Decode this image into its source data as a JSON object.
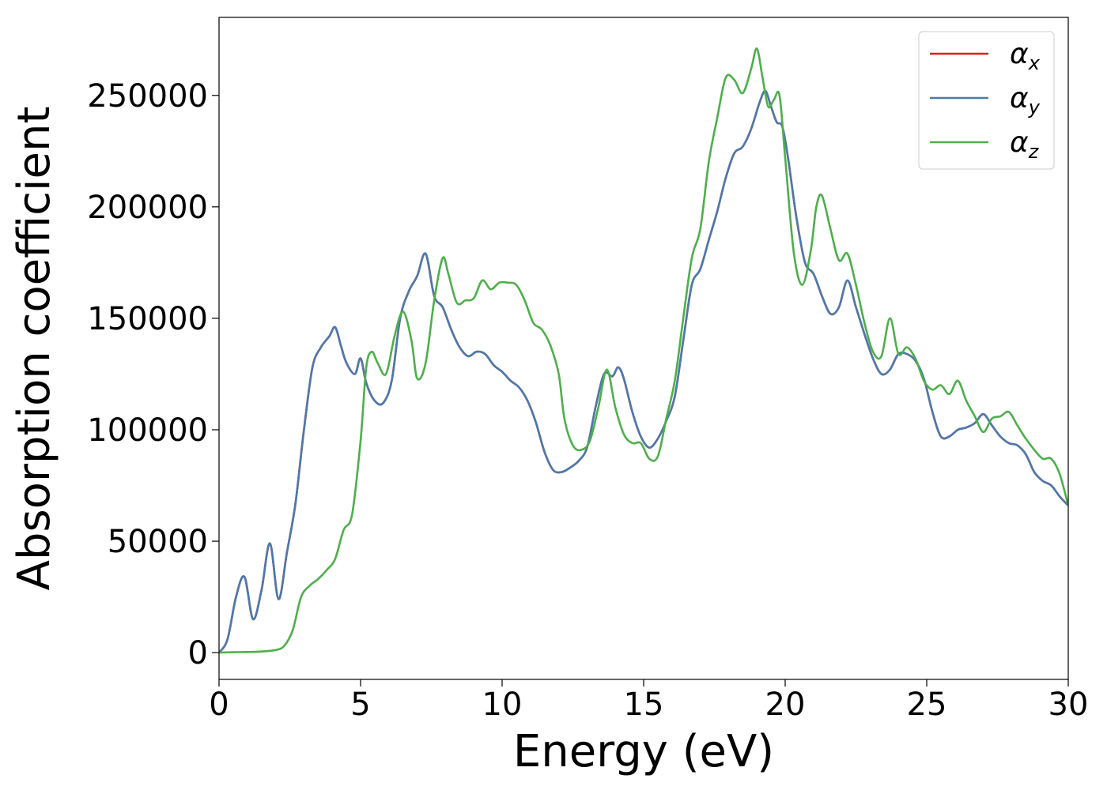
{
  "chart_data": {
    "type": "line",
    "xlabel": "Energy (eV)",
    "ylabel": "Absorption coefficient",
    "xlim": [
      0,
      30
    ],
    "ylim": [
      -12000,
      285000
    ],
    "xticks": [
      0,
      5,
      10,
      15,
      20,
      25,
      30
    ],
    "xtick_labels": [
      "0",
      "5",
      "10",
      "15",
      "20",
      "25",
      "30"
    ],
    "yticks": [
      0,
      50000,
      100000,
      150000,
      200000,
      250000
    ],
    "ytick_labels": [
      "0",
      "50000",
      "100000",
      "150000",
      "200000",
      "250000"
    ],
    "grid": false,
    "legend_position": "top-right",
    "series": [
      {
        "name": "α_x",
        "label_main": "α",
        "label_sub": "x",
        "color": "#e41a1c",
        "x": [
          0,
          0.3,
          0.6,
          0.9,
          1.2,
          1.5,
          1.8,
          2.1,
          2.4,
          2.7,
          3.0,
          3.3,
          3.6,
          3.9,
          4.1,
          4.3,
          4.5,
          4.8,
          5.0,
          5.2,
          5.5,
          5.8,
          6.1,
          6.4,
          6.7,
          7.0,
          7.3,
          7.6,
          7.9,
          8.2,
          8.5,
          8.8,
          9.1,
          9.4,
          9.7,
          10.0,
          10.3,
          10.6,
          10.9,
          11.2,
          11.5,
          11.8,
          12.1,
          12.4,
          12.7,
          13.0,
          13.3,
          13.6,
          13.9,
          14.1,
          14.3,
          14.6,
          14.9,
          15.2,
          15.5,
          15.8,
          16.1,
          16.4,
          16.7,
          17.0,
          17.3,
          17.6,
          17.9,
          18.2,
          18.5,
          18.8,
          19.1,
          19.3,
          19.5,
          19.7,
          19.9,
          20.1,
          20.4,
          20.7,
          21.0,
          21.3,
          21.6,
          21.9,
          22.2,
          22.5,
          22.8,
          23.1,
          23.4,
          23.7,
          24.0,
          24.3,
          24.6,
          24.9,
          25.2,
          25.5,
          25.8,
          26.1,
          26.4,
          26.7,
          27.0,
          27.3,
          27.6,
          27.9,
          28.2,
          28.5,
          28.8,
          29.1,
          29.4,
          29.7,
          30.0
        ],
        "y": [
          0,
          6000,
          25000,
          34000,
          15000,
          28000,
          49000,
          24000,
          45000,
          67000,
          100000,
          128000,
          137000,
          142000,
          146000,
          138000,
          130000,
          125000,
          132000,
          121000,
          113000,
          112000,
          122000,
          150000,
          162000,
          169000,
          179000,
          160000,
          155000,
          145000,
          137000,
          133000,
          135000,
          134000,
          129000,
          126000,
          122000,
          119000,
          113000,
          103000,
          90000,
          82000,
          81000,
          83000,
          86000,
          92000,
          110000,
          125000,
          124000,
          128000,
          123000,
          108000,
          97000,
          92000,
          96000,
          104000,
          115000,
          140000,
          165000,
          172000,
          185000,
          198000,
          213000,
          224000,
          227000,
          235000,
          247000,
          252000,
          245000,
          238000,
          236000,
          222000,
          195000,
          175000,
          170000,
          160000,
          152000,
          155000,
          167000,
          155000,
          143000,
          132000,
          125000,
          127000,
          134000,
          134000,
          131000,
          123000,
          108000,
          97000,
          97000,
          100000,
          101000,
          103000,
          107000,
          102000,
          97000,
          94000,
          93000,
          89000,
          81000,
          77000,
          75000,
          70000,
          66000
        ]
      },
      {
        "name": "α_y",
        "label_main": "α",
        "label_sub": "y",
        "color": "#4a7aad",
        "x": [
          0,
          0.3,
          0.6,
          0.9,
          1.2,
          1.5,
          1.8,
          2.1,
          2.4,
          2.7,
          3.0,
          3.3,
          3.6,
          3.9,
          4.1,
          4.3,
          4.5,
          4.8,
          5.0,
          5.2,
          5.5,
          5.8,
          6.1,
          6.4,
          6.7,
          7.0,
          7.3,
          7.6,
          7.9,
          8.2,
          8.5,
          8.8,
          9.1,
          9.4,
          9.7,
          10.0,
          10.3,
          10.6,
          10.9,
          11.2,
          11.5,
          11.8,
          12.1,
          12.4,
          12.7,
          13.0,
          13.3,
          13.6,
          13.9,
          14.1,
          14.3,
          14.6,
          14.9,
          15.2,
          15.5,
          15.8,
          16.1,
          16.4,
          16.7,
          17.0,
          17.3,
          17.6,
          17.9,
          18.2,
          18.5,
          18.8,
          19.1,
          19.3,
          19.5,
          19.7,
          19.9,
          20.1,
          20.4,
          20.7,
          21.0,
          21.3,
          21.6,
          21.9,
          22.2,
          22.5,
          22.8,
          23.1,
          23.4,
          23.7,
          24.0,
          24.3,
          24.6,
          24.9,
          25.2,
          25.5,
          25.8,
          26.1,
          26.4,
          26.7,
          27.0,
          27.3,
          27.6,
          27.9,
          28.2,
          28.5,
          28.8,
          29.1,
          29.4,
          29.7,
          30.0
        ],
        "y": [
          0,
          6000,
          25000,
          34000,
          15000,
          28000,
          49000,
          24000,
          45000,
          67000,
          100000,
          128000,
          137000,
          142000,
          146000,
          138000,
          130000,
          125000,
          132000,
          121000,
          113000,
          112000,
          122000,
          150000,
          162000,
          169000,
          179000,
          160000,
          155000,
          145000,
          137000,
          133000,
          135000,
          134000,
          129000,
          126000,
          122000,
          119000,
          113000,
          103000,
          90000,
          82000,
          81000,
          83000,
          86000,
          92000,
          110000,
          125000,
          124000,
          128000,
          123000,
          108000,
          97000,
          92000,
          96000,
          104000,
          115000,
          140000,
          165000,
          172000,
          185000,
          198000,
          213000,
          224000,
          227000,
          235000,
          247000,
          252000,
          245000,
          238000,
          236000,
          222000,
          195000,
          175000,
          170000,
          160000,
          152000,
          155000,
          167000,
          155000,
          143000,
          132000,
          125000,
          127000,
          134000,
          134000,
          131000,
          123000,
          108000,
          97000,
          97000,
          100000,
          101000,
          103000,
          107000,
          102000,
          97000,
          94000,
          93000,
          89000,
          81000,
          77000,
          75000,
          70000,
          66000
        ]
      },
      {
        "name": "α_z",
        "label_main": "α",
        "label_sub": "z",
        "color": "#4daf4a",
        "x": [
          0,
          0.5,
          1.0,
          1.5,
          2.0,
          2.3,
          2.6,
          2.9,
          3.2,
          3.5,
          3.8,
          4.1,
          4.4,
          4.7,
          5.0,
          5.2,
          5.4,
          5.6,
          5.9,
          6.2,
          6.5,
          6.8,
          7.0,
          7.3,
          7.6,
          7.9,
          8.1,
          8.4,
          8.7,
          9.0,
          9.3,
          9.6,
          9.9,
          10.2,
          10.5,
          10.8,
          11.1,
          11.4,
          11.7,
          12.0,
          12.2,
          12.5,
          12.8,
          13.1,
          13.4,
          13.7,
          14.0,
          14.3,
          14.6,
          14.9,
          15.2,
          15.5,
          15.8,
          16.1,
          16.4,
          16.7,
          17.0,
          17.3,
          17.6,
          17.9,
          18.2,
          18.5,
          18.8,
          19.0,
          19.2,
          19.4,
          19.6,
          19.8,
          20.0,
          20.3,
          20.6,
          20.9,
          21.1,
          21.3,
          21.6,
          21.9,
          22.2,
          22.5,
          22.8,
          23.1,
          23.4,
          23.7,
          24.0,
          24.3,
          24.6,
          24.9,
          25.2,
          25.5,
          25.8,
          26.1,
          26.4,
          26.7,
          27.0,
          27.3,
          27.6,
          27.9,
          28.2,
          28.5,
          28.8,
          29.1,
          29.4,
          29.7,
          30.0
        ],
        "y": [
          0,
          200,
          300,
          500,
          1200,
          3000,
          10000,
          25000,
          30000,
          33000,
          37000,
          42000,
          55000,
          62000,
          95000,
          128000,
          135000,
          130000,
          125000,
          142000,
          153000,
          140000,
          123000,
          130000,
          158000,
          177000,
          170000,
          157000,
          158000,
          159000,
          167000,
          163000,
          166000,
          166000,
          165000,
          158000,
          148000,
          145000,
          138000,
          125000,
          105000,
          93000,
          91000,
          95000,
          110000,
          127000,
          110000,
          98000,
          94000,
          94000,
          87000,
          88000,
          105000,
          122000,
          150000,
          177000,
          190000,
          220000,
          240000,
          258000,
          257000,
          251000,
          262000,
          271000,
          258000,
          245000,
          248000,
          250000,
          222000,
          180000,
          165000,
          180000,
          200000,
          205000,
          190000,
          176000,
          179000,
          165000,
          148000,
          135000,
          133000,
          150000,
          134000,
          137000,
          132000,
          122000,
          118000,
          120000,
          116000,
          122000,
          113000,
          106000,
          99000,
          105000,
          106000,
          108000,
          102000,
          96000,
          91000,
          87000,
          87000,
          80000,
          66000
        ]
      }
    ]
  }
}
